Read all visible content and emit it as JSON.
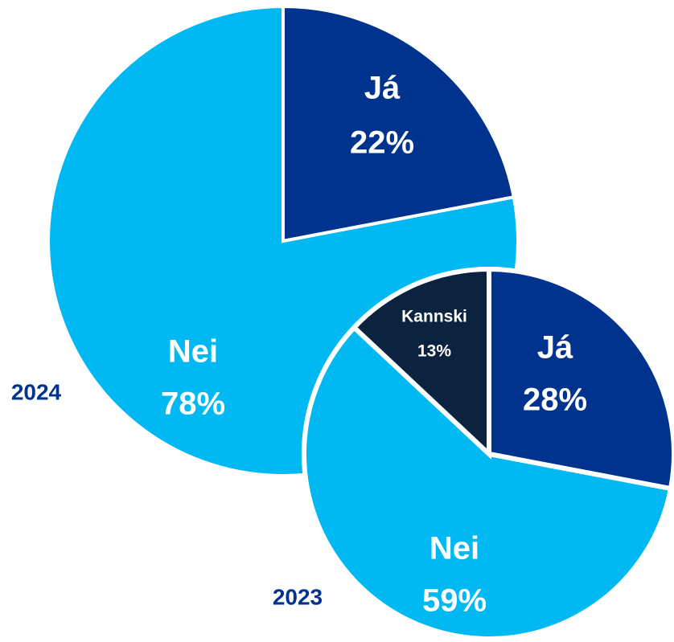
{
  "chart_data": [
    {
      "type": "pie",
      "title": "2024",
      "categories": [
        "Já",
        "Nei"
      ],
      "values": [
        22,
        78
      ],
      "value_labels": [
        "22%",
        "78%"
      ],
      "colors": [
        "#00338d",
        "#00b9f2"
      ]
    },
    {
      "type": "pie",
      "title": "2023",
      "categories": [
        "Já",
        "Nei",
        "Kannski"
      ],
      "values": [
        28,
        59,
        13
      ],
      "value_labels": [
        "28%",
        "59%",
        "13%"
      ],
      "colors": [
        "#00338d",
        "#00b9f2",
        "#0c2340"
      ]
    }
  ]
}
